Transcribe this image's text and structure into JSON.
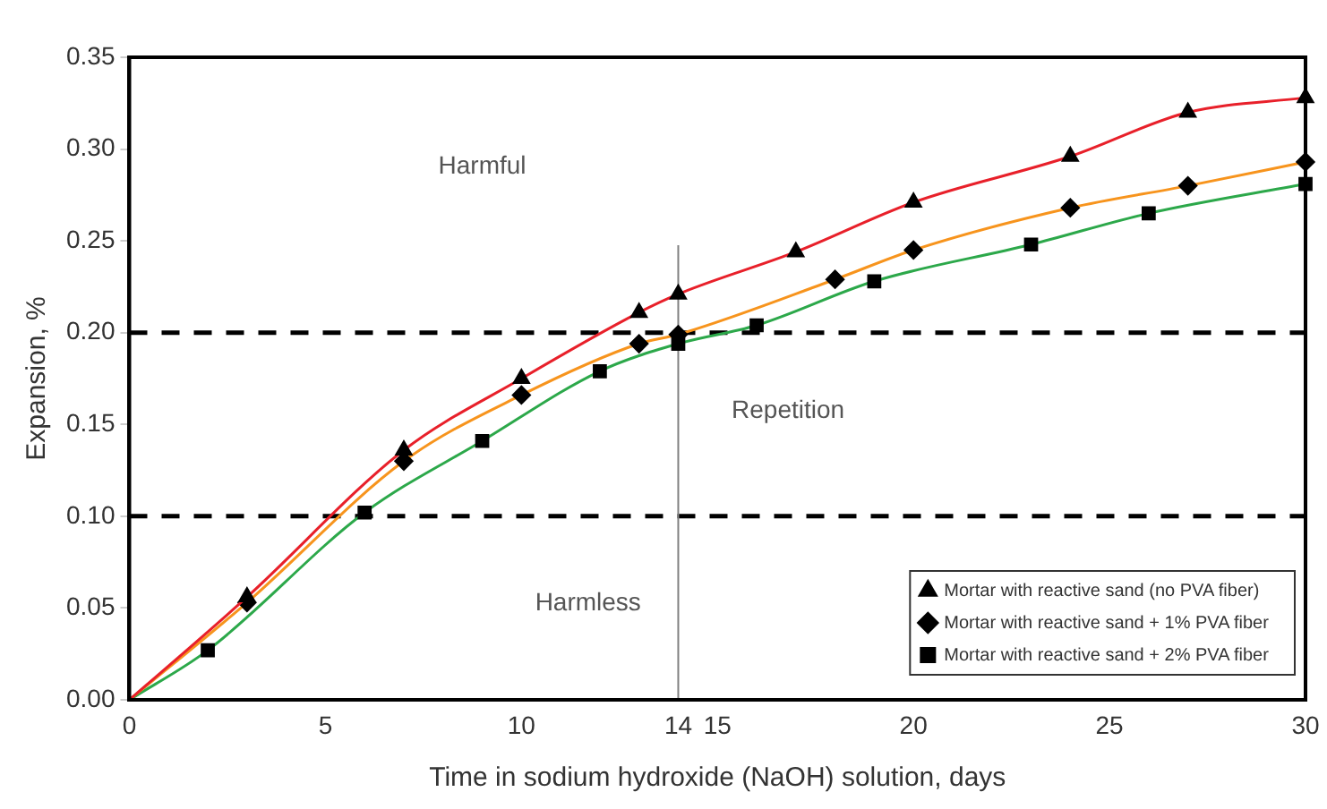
{
  "chart_data": {
    "type": "line",
    "xlabel": "Time in sodium hydroxide (NaOH) solution, days",
    "ylabel": "Expansion, %",
    "xlim": [
      0,
      30
    ],
    "xticks": [
      0,
      5,
      10,
      {
        "value": 14,
        "label": "14"
      },
      15,
      20,
      25,
      30
    ],
    "ylim": [
      0,
      0.35
    ],
    "yticks": [
      {
        "value": 0,
        "label": "0.00"
      },
      {
        "value": 0.05,
        "label": "0.05"
      },
      {
        "value": 0.1,
        "label": "0.10"
      },
      {
        "value": 0.15,
        "label": "0.15"
      },
      {
        "value": 0.2,
        "label": "0.20"
      },
      {
        "value": 0.25,
        "label": "0.25"
      },
      {
        "value": 0.3,
        "label": "0.30"
      },
      {
        "value": 0.35,
        "label": "0.35"
      }
    ],
    "grid": false,
    "legend": "bottom right",
    "line_style": "solid",
    "series": [
      {
        "name": "Mortar with reactive sand (no PVA fiber)",
        "color": "#e8202a",
        "marker": "triangle",
        "x": [
          0,
          3,
          7,
          10,
          13,
          14,
          17,
          20,
          24,
          27,
          30
        ],
        "values": [
          0,
          0.056,
          0.136,
          0.175,
          0.211,
          0.221,
          0.244,
          0.271,
          0.296,
          0.32,
          0.328
        ]
      },
      {
        "name": "Mortar with reactive sand + 1% PVA fiber",
        "color": "#f7941d",
        "marker": "diamond",
        "x": [
          0,
          3,
          7,
          10,
          13,
          14,
          18,
          20,
          24,
          27,
          30
        ],
        "values": [
          0,
          0.053,
          0.13,
          0.166,
          0.194,
          0.199,
          0.229,
          0.245,
          0.268,
          0.28,
          0.293
        ]
      },
      {
        "name": "Mortar with reactive sand + 2% PVA fiber",
        "color": "#2ca84a",
        "marker": "square",
        "x": [
          0,
          2,
          6,
          9,
          12,
          14,
          16,
          19,
          23,
          26,
          30
        ],
        "values": [
          0,
          0.027,
          0.102,
          0.141,
          0.179,
          0.194,
          0.204,
          0.228,
          0.248,
          0.265,
          0.281
        ]
      }
    ],
    "ref_lines": [
      {
        "axis": "y",
        "value": 0.2,
        "color": "#000000",
        "line_style": "dashed"
      },
      {
        "axis": "y",
        "value": 0.1,
        "color": "#000000",
        "line_style": "dashed"
      },
      {
        "axis": "x",
        "value": 14,
        "color": "#808080",
        "line_style": "solid"
      }
    ],
    "annotations": [
      "Harmful",
      "Repetition",
      "Harmless"
    ]
  }
}
